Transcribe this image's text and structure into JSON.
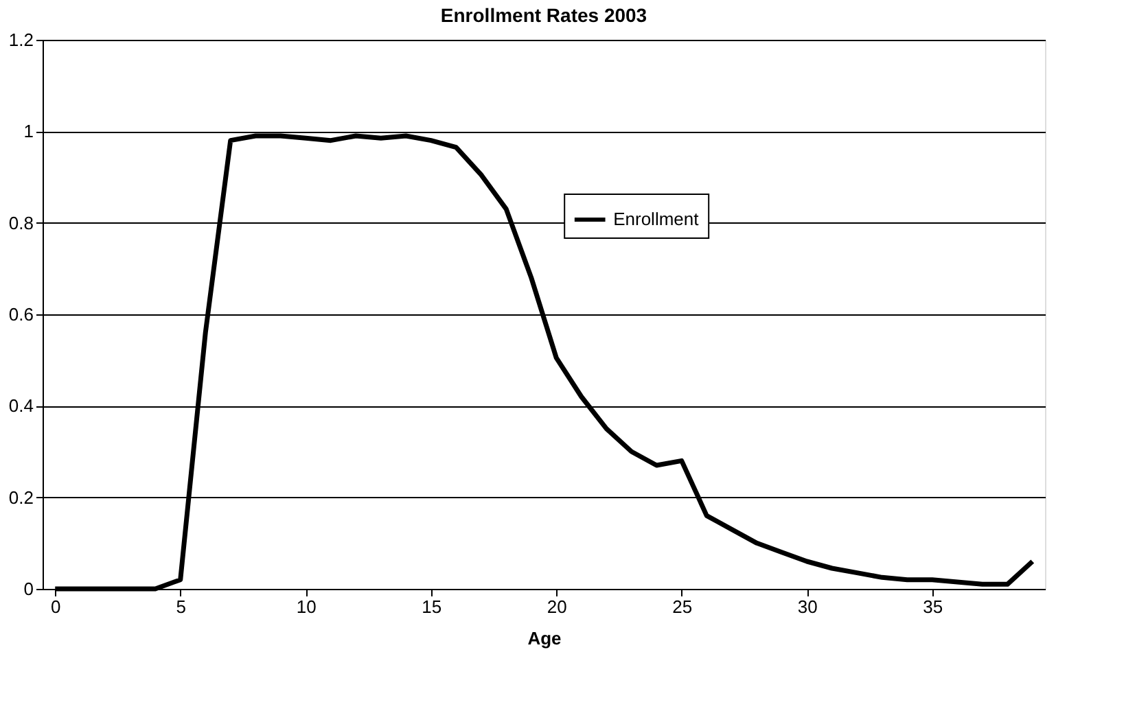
{
  "chart_data": {
    "type": "line",
    "title": "Enrollment Rates 2003",
    "xlabel": "Age",
    "x": [
      0,
      1,
      2,
      3,
      4,
      5,
      6,
      7,
      8,
      9,
      10,
      11,
      12,
      13,
      14,
      15,
      16,
      17,
      18,
      19,
      20,
      21,
      22,
      23,
      24,
      25,
      26,
      27,
      28,
      29,
      30,
      31,
      32,
      33,
      34,
      35,
      36,
      37,
      38,
      39
    ],
    "series": [
      {
        "name": "Enrollment",
        "color": "#000000",
        "values": [
          0,
          0,
          0,
          0,
          0,
          0.02,
          0.56,
          0.98,
          0.99,
          0.99,
          0.985,
          0.98,
          0.99,
          0.985,
          0.99,
          0.98,
          0.965,
          0.905,
          0.83,
          0.68,
          0.505,
          0.42,
          0.35,
          0.3,
          0.27,
          0.28,
          0.16,
          0.13,
          0.1,
          0.08,
          0.06,
          0.045,
          0.035,
          0.025,
          0.02,
          0.02,
          0.015,
          0.01,
          0.01,
          0.06
        ]
      }
    ],
    "xlim": [
      -0.5,
      39.5
    ],
    "xticks": [
      0,
      5,
      10,
      15,
      20,
      25,
      30,
      35
    ],
    "ylim": [
      0,
      1.2
    ],
    "yticks": [
      0,
      0.2,
      0.4,
      0.6,
      0.8,
      1,
      1.2
    ],
    "grid": "y",
    "legend": "right",
    "marker": "none",
    "line_style": "solid"
  }
}
